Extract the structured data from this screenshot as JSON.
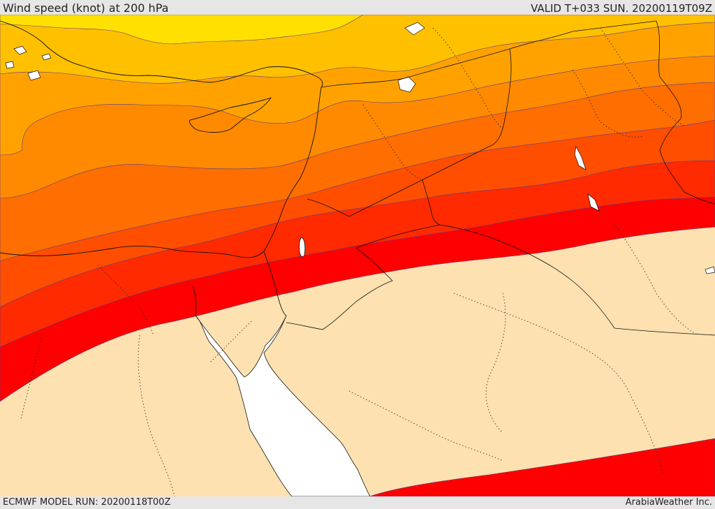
{
  "header": {
    "title": "Wind speed (knot) at 200 hPa",
    "valid": "VALID T+033 SUN. 20200119T09Z"
  },
  "footer": {
    "model_run": "ECMWF MODEL RUN: 20200118T00Z",
    "credit": "ArabiaWeather Inc."
  },
  "map": {
    "variable": "wind speed",
    "level_hpa": 200,
    "units": "knot",
    "land_color": "#fde1b0",
    "sea_color": "#ffffff",
    "band_colors": [
      "#ffe000",
      "#ffc000",
      "#ffa200",
      "#ff8a00",
      "#ff6e00",
      "#ff4e00",
      "#ff2a00",
      "#ff0000"
    ]
  }
}
